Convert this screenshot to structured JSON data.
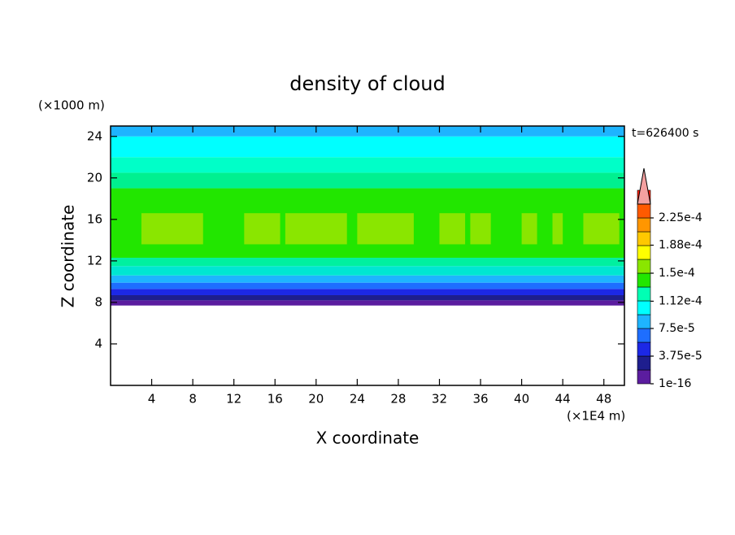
{
  "chart_data": {
    "type": "contour",
    "title": "density of cloud",
    "y_unit": "(×1000 m)",
    "x_unit": "(×1E4 m)",
    "time_label": "t=626400 s",
    "xlabel": "X coordinate",
    "ylabel": "Z coordinate",
    "xlim": [
      0,
      50
    ],
    "ylim": [
      0,
      25
    ],
    "xticks": [
      4,
      8,
      12,
      16,
      20,
      24,
      28,
      32,
      36,
      40,
      44,
      48
    ],
    "yticks": [
      4,
      8,
      12,
      16,
      20,
      24
    ],
    "field_bands": [
      {
        "zmin": 7.7,
        "zmax": 8.2,
        "color": "#5b1d9f"
      },
      {
        "zmin": 8.2,
        "zmax": 8.7,
        "color": "#1e1e8e"
      },
      {
        "zmin": 8.7,
        "zmax": 9.3,
        "color": "#1c28e6"
      },
      {
        "zmin": 9.3,
        "zmax": 9.9,
        "color": "#1e6eff"
      },
      {
        "zmin": 9.9,
        "zmax": 10.6,
        "color": "#1eb4ff"
      },
      {
        "zmin": 10.6,
        "zmax": 11.5,
        "color": "#00e6d2"
      },
      {
        "zmin": 11.5,
        "zmax": 12.3,
        "color": "#00f0a0"
      },
      {
        "zmin": 12.3,
        "zmax": 19,
        "color": "#22e600"
      },
      {
        "zmin": 19,
        "zmax": 20.5,
        "color": "#00f090"
      },
      {
        "zmin": 20.5,
        "zmax": 22,
        "color": "#00ffc8"
      },
      {
        "zmin": 22,
        "zmax": 24,
        "color": "#00ffff"
      },
      {
        "zmin": 24,
        "zmax": 25,
        "color": "#1eb4ff"
      }
    ],
    "field_patches": {
      "color": "#8ae600",
      "zmin": 13.6,
      "zmax": 16.6,
      "x": [
        [
          3,
          9
        ],
        [
          13,
          16.5
        ],
        [
          17,
          23
        ],
        [
          24,
          29.5
        ],
        [
          32,
          34.5
        ],
        [
          35,
          37
        ],
        [
          40,
          41.5
        ],
        [
          43,
          44
        ],
        [
          46,
          49.5
        ]
      ]
    },
    "colorbar": {
      "lim": [
        1e-16,
        0.000225
      ],
      "ticks": [
        1e-16,
        {
          "value": 3.75e-05,
          "label": "3.75e-5"
        },
        {
          "value": 7.5e-05,
          "label": "7.5e-5"
        },
        {
          "value": 0.000112,
          "label": "1.12e-4"
        },
        {
          "value": 0.00015,
          "label": "1.5e-4"
        },
        {
          "value": 0.000188,
          "label": "1.88e-4"
        },
        {
          "value": 0.000225,
          "label": "2.25e-4"
        }
      ],
      "colors": [
        "#5b1d9f",
        "#1e1e8e",
        "#1c28e6",
        "#1e6eff",
        "#1eb4ff",
        "#00ffff",
        "#00ffb4",
        "#22e600",
        "#8ae600",
        "#ffff00",
        "#ffc800",
        "#ff9600",
        "#ff5a00",
        "#ff1e00"
      ],
      "overflow_color": "#f4a0a0"
    }
  }
}
